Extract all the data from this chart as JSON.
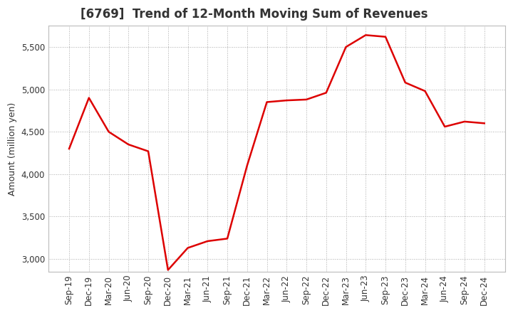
{
  "title": "[6769]  Trend of 12-Month Moving Sum of Revenues",
  "ylabel": "Amount (million yen)",
  "background_color": "#ffffff",
  "plot_bg_color": "#ffffff",
  "line_color": "#dd0000",
  "line_width": 1.8,
  "x_labels": [
    "Sep-19",
    "Dec-19",
    "Mar-20",
    "Jun-20",
    "Sep-20",
    "Dec-20",
    "Mar-21",
    "Jun-21",
    "Sep-21",
    "Dec-21",
    "Mar-22",
    "Jun-22",
    "Sep-22",
    "Dec-22",
    "Mar-23",
    "Jun-23",
    "Sep-23",
    "Dec-23",
    "Mar-24",
    "Jun-24",
    "Sep-24",
    "Dec-24"
  ],
  "y_values": [
    4300,
    4900,
    4500,
    4350,
    4270,
    2870,
    3130,
    3210,
    3240,
    4100,
    4850,
    4870,
    4880,
    4960,
    5500,
    5640,
    5620,
    5080,
    4980,
    4560,
    4620,
    4600
  ],
  "ylim": [
    2850,
    5750
  ],
  "yticks": [
    3000,
    3500,
    4000,
    4500,
    5000,
    5500
  ],
  "grid_color": "#aaaaaa",
  "title_fontsize": 12,
  "title_color": "#333333",
  "label_fontsize": 9,
  "tick_fontsize": 8.5
}
